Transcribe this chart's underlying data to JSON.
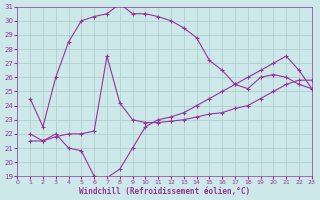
{
  "xlabel": "Windchill (Refroidissement éolien,°C)",
  "background_color": "#cce8e8",
  "grid_color": "#aacccc",
  "line_color": "#993399",
  "xlim": [
    0,
    23
  ],
  "ylim": [
    19,
    31
  ],
  "xticks": [
    0,
    1,
    2,
    3,
    4,
    5,
    6,
    7,
    8,
    9,
    10,
    11,
    12,
    13,
    14,
    15,
    16,
    17,
    18,
    19,
    20,
    21,
    22,
    23
  ],
  "yticks": [
    19,
    20,
    21,
    22,
    23,
    24,
    25,
    26,
    27,
    28,
    29,
    30,
    31
  ],
  "line1_x": [
    1,
    2,
    3,
    4,
    5,
    6,
    7,
    8,
    9,
    10,
    11,
    12,
    13,
    14,
    15,
    16,
    17,
    18,
    19,
    20,
    21,
    22,
    23
  ],
  "line1_y": [
    24.5,
    22.5,
    26.0,
    28.5,
    30.0,
    30.3,
    30.5,
    31.2,
    30.5,
    30.5,
    30.3,
    30.0,
    29.5,
    28.8,
    27.2,
    26.5,
    25.5,
    25.2,
    26.0,
    26.2,
    26.0,
    25.5,
    25.2
  ],
  "line2_x": [
    1,
    2,
    3,
    4,
    5,
    6,
    7,
    8,
    9,
    10,
    11,
    12,
    13,
    14,
    15,
    16,
    17,
    18,
    19,
    20,
    21,
    22,
    23
  ],
  "line2_y": [
    22.0,
    21.5,
    22.0,
    21.0,
    20.8,
    19.0,
    18.9,
    19.5,
    21.0,
    22.5,
    23.0,
    23.2,
    23.5,
    24.0,
    24.5,
    25.0,
    25.5,
    26.0,
    26.5,
    27.0,
    27.5,
    26.5,
    25.2
  ],
  "line3_x": [
    1,
    2,
    3,
    4,
    5,
    6,
    7,
    8,
    9,
    10,
    11,
    12,
    13,
    14,
    15,
    16,
    17,
    18,
    19,
    20,
    21,
    22,
    23
  ],
  "line3_y": [
    21.5,
    21.5,
    21.8,
    22.0,
    22.0,
    22.2,
    27.5,
    24.2,
    23.0,
    22.8,
    22.8,
    22.9,
    23.0,
    23.2,
    23.4,
    23.5,
    23.8,
    24.0,
    24.5,
    25.0,
    25.5,
    25.8,
    25.8
  ],
  "marker": "+",
  "markersize": 3,
  "linewidth": 0.8
}
